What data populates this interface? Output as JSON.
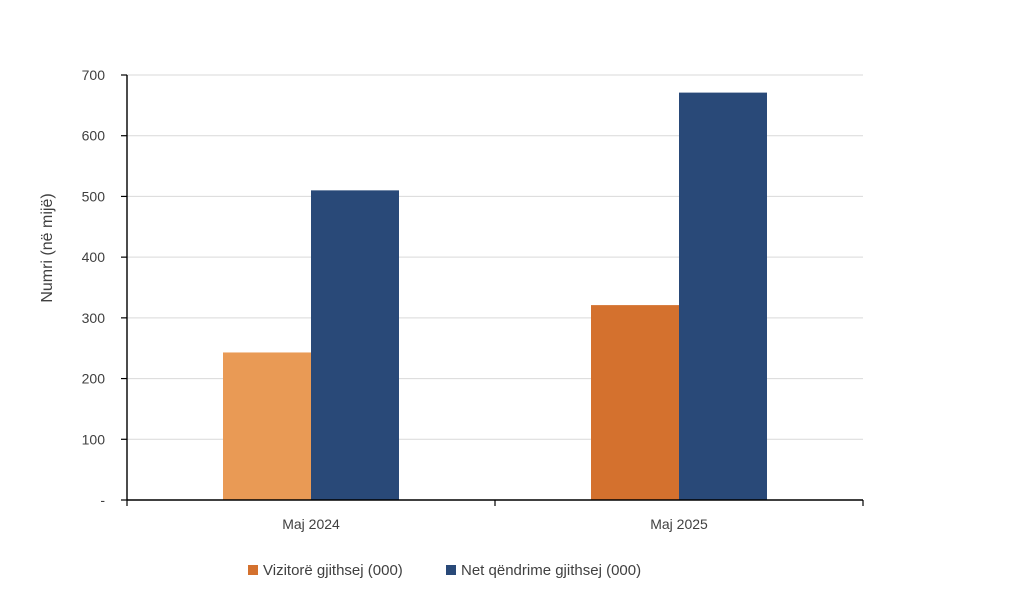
{
  "chart_data": {
    "type": "bar",
    "title": "",
    "xlabel": "",
    "ylabel": "Numri (në mijë)",
    "categories": [
      "Maj 2024",
      "Maj 2025"
    ],
    "ylim": [
      0,
      700
    ],
    "yticks": [
      0,
      100,
      200,
      300,
      400,
      500,
      600,
      700
    ],
    "ytick_labels": [
      "-",
      "100",
      "200",
      "300",
      "400",
      "500",
      "600",
      "700"
    ],
    "grid": true,
    "legend_position": "bottom",
    "series": [
      {
        "name": "Vizitorë gjithsej (000)",
        "values": [
          243,
          321
        ],
        "colors": [
          "#e99a55",
          "#d4712e"
        ],
        "legend_color": "#d4712e"
      },
      {
        "name": "Net qëndrime gjithsej (000)",
        "values": [
          510,
          671
        ],
        "colors": [
          "#294978",
          "#294978"
        ],
        "legend_color": "#294978"
      }
    ]
  }
}
